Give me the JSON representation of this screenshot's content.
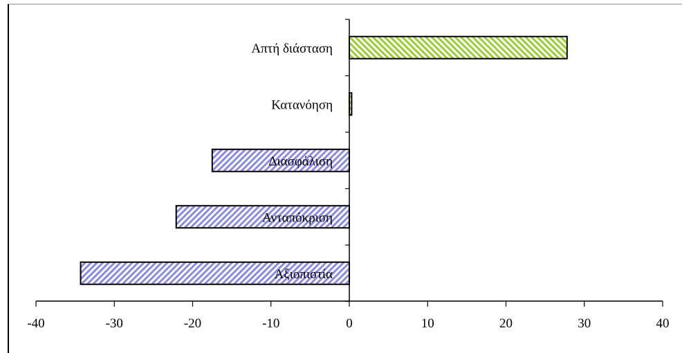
{
  "colors": {
    "negative_stripe": "#8a8ae0",
    "positive_stripe": "#9acd32",
    "axis": "#000000"
  },
  "chart_data": {
    "type": "bar",
    "orientation": "horizontal",
    "categories": [
      "Απτή διάσταση",
      "Κατανόηση",
      "Διασφάλιση",
      "Ανταπόκριση",
      "Αξιοπιστία"
    ],
    "values": [
      27.8,
      0.3,
      -17.5,
      -22.1,
      -34.3
    ],
    "xlim": [
      -40,
      40
    ],
    "xticks": [
      "-40",
      "-30",
      "-20",
      "-10",
      "0",
      "10",
      "20",
      "30",
      "40"
    ],
    "title": "",
    "xlabel": "",
    "ylabel": "",
    "grid": false,
    "legend": "none"
  }
}
